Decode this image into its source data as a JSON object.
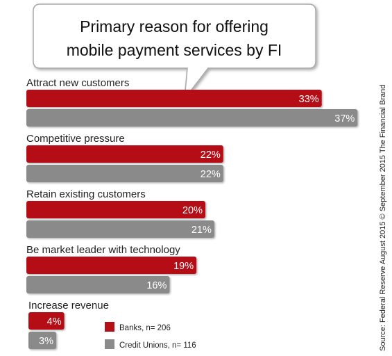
{
  "chart_data": {
    "type": "bar",
    "orientation": "horizontal",
    "title": "Primary reason for offering mobile payment services by FI",
    "title_lines": [
      "Primary reason for offering",
      "mobile payment services by FI"
    ],
    "categories": [
      "Attract new customers",
      "Competitive pressure",
      "Retain existing customers",
      "Be market leader with technology",
      "Increase revenue"
    ],
    "series": [
      {
        "name": "Banks, n= 206",
        "color": "#b50f16",
        "values": [
          33,
          22,
          20,
          19,
          4
        ]
      },
      {
        "name": "Credit Unions, n= 116",
        "color": "#8a8a8a",
        "values": [
          37,
          22,
          21,
          16,
          3
        ]
      }
    ],
    "value_labels": [
      [
        "33%",
        "22%",
        "20%",
        "19%",
        "4%"
      ],
      [
        "37%",
        "22%",
        "21%",
        "16%",
        "3%"
      ]
    ],
    "value_suffix": "%",
    "legend_position": "bottom-center",
    "grid": false,
    "source": "Source: Federal Reserve August 2015 © September  2015 The Financial Brand"
  }
}
